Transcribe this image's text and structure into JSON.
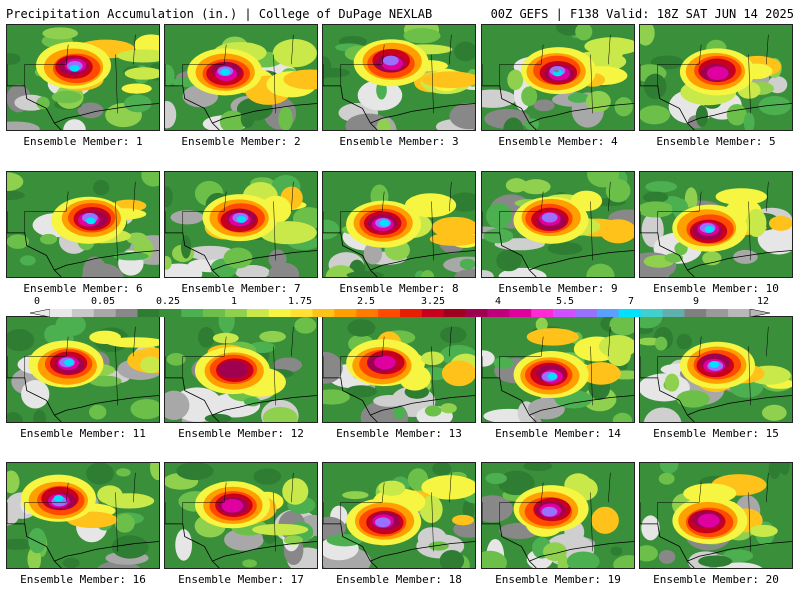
{
  "header": {
    "title_left": "Precipitation Accumulation (in.) | College of DuPage NEXLAB",
    "title_right": "00Z GEFS | F138 Valid: 18Z SAT JUN 14 2025"
  },
  "panels": [
    {
      "label": "Ensemble Member: 1"
    },
    {
      "label": "Ensemble Member: 2"
    },
    {
      "label": "Ensemble Member: 3"
    },
    {
      "label": "Ensemble Member: 4"
    },
    {
      "label": "Ensemble Member: 5"
    },
    {
      "label": "Ensemble Member: 6"
    },
    {
      "label": "Ensemble Member: 7"
    },
    {
      "label": "Ensemble Member: 8"
    },
    {
      "label": "Ensemble Member: 9"
    },
    {
      "label": "Ensemble Member: 10"
    },
    {
      "label": "Ensemble Member: 11"
    },
    {
      "label": "Ensemble Member: 12"
    },
    {
      "label": "Ensemble Member: 13"
    },
    {
      "label": "Ensemble Member: 14"
    },
    {
      "label": "Ensemble Member: 15"
    },
    {
      "label": "Ensemble Member: 16"
    },
    {
      "label": "Ensemble Member: 17"
    },
    {
      "label": "Ensemble Member: 18"
    },
    {
      "label": "Ensemble Member: 19"
    },
    {
      "label": "Ensemble Member: 20"
    }
  ],
  "colorbar": {
    "tick_labels": [
      "0",
      "0.05",
      "0.25",
      "1",
      "1.75",
      "2.5",
      "3.25",
      "4",
      "5.5",
      "7",
      "9",
      "12"
    ],
    "colors": [
      "#e8e8e8",
      "#c8c8c8",
      "#a8a8a8",
      "#888888",
      "#2e7d32",
      "#3a8f3a",
      "#4caf50",
      "#6cc04a",
      "#8fd14f",
      "#c9e84a",
      "#f5f542",
      "#ffe033",
      "#ffc21a",
      "#ffa000",
      "#ff7a00",
      "#ff4a00",
      "#e81e00",
      "#c8001e",
      "#a0001e",
      "#a00050",
      "#c0007a",
      "#e000a0",
      "#ff2ad4",
      "#d050ff",
      "#9a70ff",
      "#5aa0ff",
      "#00e0ff",
      "#40d0d0",
      "#60b0b0",
      "#808080",
      "#9a9a9a",
      "#b8b8b8"
    ]
  }
}
